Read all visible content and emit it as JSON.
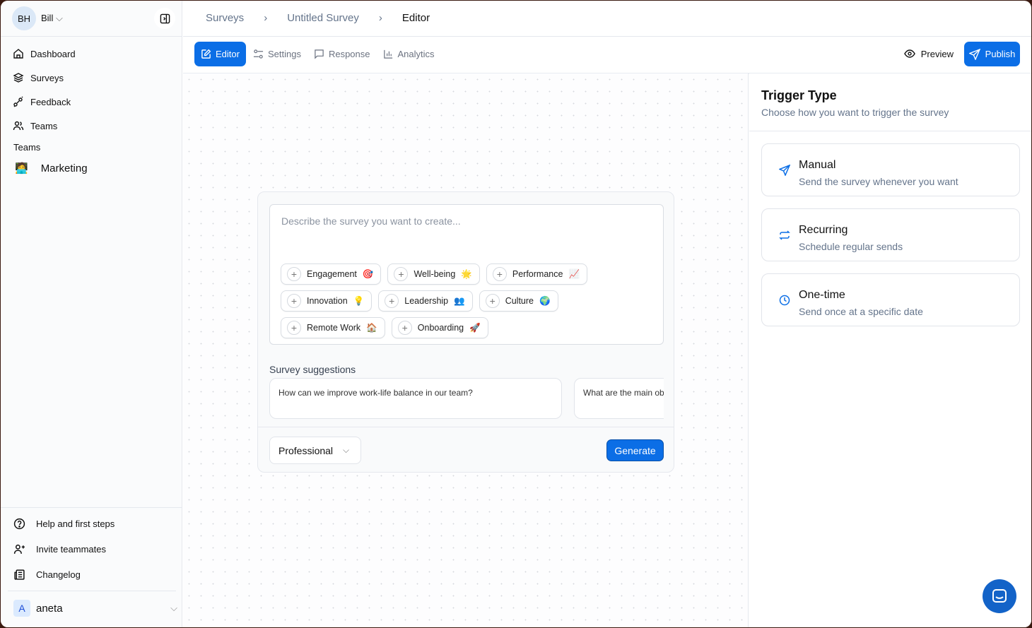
{
  "user": {
    "initials": "BH",
    "name": "Bill"
  },
  "sidebar": {
    "items": [
      {
        "label": "Dashboard",
        "icon": "home-icon"
      },
      {
        "label": "Surveys",
        "icon": "layers-icon"
      },
      {
        "label": "Feedback",
        "icon": "feedback-icon"
      },
      {
        "label": "Teams",
        "icon": "users-icon"
      }
    ],
    "teams_heading": "Teams",
    "teams": [
      {
        "label": "Marketing",
        "emoji": "🧑‍💻"
      }
    ],
    "bottom": [
      {
        "label": "Help and first steps",
        "icon": "help-circle-icon"
      },
      {
        "label": "Invite teammates",
        "icon": "user-plus-icon"
      },
      {
        "label": "Changelog",
        "icon": "newspaper-icon"
      }
    ],
    "account": {
      "initial": "A",
      "name": "aneta"
    }
  },
  "breadcrumb": [
    "Surveys",
    "Untitled Survey",
    "Editor"
  ],
  "tabs": [
    {
      "label": "Editor",
      "active": true
    },
    {
      "label": "Settings"
    },
    {
      "label": "Response"
    },
    {
      "label": "Analytics"
    }
  ],
  "actions": {
    "preview": "Preview",
    "publish": "Publish"
  },
  "editor": {
    "placeholder": "Describe the survey you want to create...",
    "chips": [
      {
        "label": "Engagement",
        "emoji": "🎯"
      },
      {
        "label": "Well-being",
        "emoji": "🌟"
      },
      {
        "label": "Performance",
        "emoji": "📈"
      },
      {
        "label": "Innovation",
        "emoji": "💡"
      },
      {
        "label": "Leadership",
        "emoji": "👥"
      },
      {
        "label": "Culture",
        "emoji": "🌍"
      },
      {
        "label": "Remote Work",
        "emoji": "🏠"
      },
      {
        "label": "Onboarding",
        "emoji": "🚀"
      }
    ],
    "suggestions_label": "Survey suggestions",
    "suggestions": [
      "How can we improve work-life balance in our team?",
      "What are the main ob"
    ],
    "tone": "Professional",
    "generate": "Generate"
  },
  "trigger": {
    "title": "Trigger Type",
    "subtitle": "Choose how you want to trigger the survey",
    "options": [
      {
        "title": "Manual",
        "desc": "Send the survey whenever you want"
      },
      {
        "title": "Recurring",
        "desc": "Schedule regular sends"
      },
      {
        "title": "One-time",
        "desc": "Send once at a specific date"
      }
    ]
  },
  "colors": {
    "accent": "#0b6ee6"
  }
}
